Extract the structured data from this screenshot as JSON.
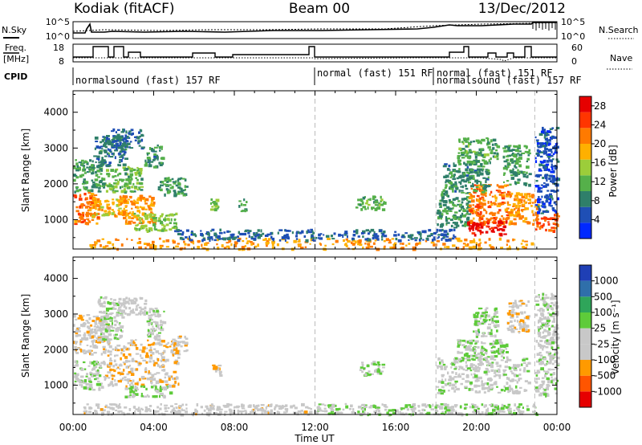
{
  "header": {
    "station": "Kodiak (fitACF)",
    "beam": "Beam 00",
    "date": "13/Dec/2012"
  },
  "left_labels": {
    "nsky": "N.Sky",
    "freq": "Freq.",
    "freq_unit": "[MHz]",
    "cpid": "CPID"
  },
  "right_labels": {
    "nsearch": "N.Search",
    "nave": "Nave"
  },
  "noise_panel": {
    "left_ticks": [
      "10^5",
      "10^0"
    ],
    "right_ticks": [
      "10^5",
      "10^0"
    ]
  },
  "freq_panel": {
    "left_ticks": [
      "18",
      "8"
    ],
    "right_ticks": [
      "60",
      "0"
    ]
  },
  "cpid_segments": [
    {
      "start": 0.0,
      "end": 12.0,
      "label": "normalsound (fast) 157 RF"
    },
    {
      "start": 12.0,
      "end": 18.0,
      "label": "normal (fast) 151 RF"
    },
    {
      "start": 18.0,
      "end": 21.2,
      "label": "normal (fast) 151 RF"
    },
    {
      "start": 18.0,
      "end": 24.0,
      "label": "normalsound (fast) 157 RF"
    }
  ],
  "colors": {
    "power": [
      "#0028ff",
      "#1f4fb5",
      "#2f7f6a",
      "#55b04a",
      "#9ccd3a",
      "#ffb000",
      "#ff7a00",
      "#ff3500",
      "#e60000"
    ],
    "velocity": [
      "#e60000",
      "#ff5500",
      "#ff9a00",
      "#c8c8c8",
      "#c8c8c8",
      "#5ecb3a",
      "#2fa55a",
      "#2f6faa",
      "#1f3fb5"
    ]
  },
  "chart_data": [
    {
      "type": "heatmap",
      "title": "Power",
      "xlabel": "",
      "ylabel": "Slant Range [km]",
      "x_ticks": [
        "00:00",
        "04:00",
        "08:00",
        "12:00",
        "16:00",
        "20:00",
        "00:00"
      ],
      "xlim": [
        0,
        24
      ],
      "y_ticks": [
        "1000",
        "2000",
        "3000",
        "4000"
      ],
      "ylim": [
        180,
        4600
      ],
      "colorbar": {
        "label": "Power [dB]",
        "ticks": [
          "4",
          "8",
          "12",
          "16",
          "20",
          "24",
          "28"
        ],
        "range": [
          0,
          30
        ]
      },
      "regions": [
        {
          "t0": 0.0,
          "t1": 1.2,
          "r0": 900,
          "r1": 1800,
          "v": 22
        },
        {
          "t0": 0.9,
          "t1": 2.6,
          "r0": 1100,
          "r1": 1600,
          "v": 18
        },
        {
          "t0": 2.2,
          "t1": 4.0,
          "r0": 900,
          "r1": 1700,
          "v": 20
        },
        {
          "t0": 3.0,
          "t1": 5.1,
          "r0": 700,
          "r1": 1200,
          "v": 14
        },
        {
          "t0": 0.0,
          "t1": 1.5,
          "r0": 1800,
          "r1": 2700,
          "v": 10
        },
        {
          "t0": 1.6,
          "t1": 3.4,
          "r0": 1800,
          "r1": 2500,
          "v": 12
        },
        {
          "t0": 1.0,
          "t1": 2.6,
          "r0": 2500,
          "r1": 3400,
          "v": 8
        },
        {
          "t0": 3.5,
          "t1": 4.4,
          "r0": 2500,
          "r1": 3100,
          "v": 9
        },
        {
          "t0": 1.8,
          "t1": 3.4,
          "r0": 3000,
          "r1": 3550,
          "v": 7
        },
        {
          "t0": 4.2,
          "t1": 5.6,
          "r0": 1700,
          "r1": 2200,
          "v": 10
        },
        {
          "t0": 6.8,
          "t1": 7.3,
          "r0": 1200,
          "r1": 1600,
          "v": 13
        },
        {
          "t0": 8.2,
          "t1": 8.6,
          "r0": 1200,
          "r1": 1600,
          "v": 10
        },
        {
          "t0": 14.0,
          "t1": 15.4,
          "r0": 1300,
          "r1": 1700,
          "v": 12
        },
        {
          "t0": 18.0,
          "t1": 19.6,
          "r0": 800,
          "r1": 1800,
          "v": 10
        },
        {
          "t0": 19.6,
          "t1": 21.6,
          "r0": 900,
          "r1": 2000,
          "v": 22
        },
        {
          "t0": 21.6,
          "t1": 23.0,
          "r0": 900,
          "r1": 1800,
          "v": 20
        },
        {
          "t0": 19.5,
          "t1": 21.5,
          "r0": 600,
          "r1": 1000,
          "v": 28
        },
        {
          "t0": 18.3,
          "t1": 20.6,
          "r0": 1800,
          "r1": 2600,
          "v": 9
        },
        {
          "t0": 19.0,
          "t1": 21.0,
          "r0": 2600,
          "r1": 3300,
          "v": 11
        },
        {
          "t0": 21.3,
          "t1": 22.6,
          "r0": 2000,
          "r1": 3100,
          "v": 10
        },
        {
          "t0": 22.9,
          "t1": 24.0,
          "r0": 700,
          "r1": 1200,
          "v": 24
        },
        {
          "t0": 22.9,
          "t1": 24.0,
          "r0": 1200,
          "r1": 3600,
          "v": 5
        },
        {
          "t0": 0.8,
          "t1": 23.0,
          "r0": 200,
          "r1": 500,
          "v": 20
        },
        {
          "t0": 5.0,
          "t1": 19.0,
          "r0": 450,
          "r1": 750,
          "v": 6
        }
      ]
    },
    {
      "type": "heatmap",
      "title": "Velocity",
      "xlabel": "Time UT",
      "ylabel": "Slant Range [km]",
      "x_ticks": [
        "00:00",
        "04:00",
        "08:00",
        "12:00",
        "16:00",
        "20:00",
        "00:00"
      ],
      "xlim": [
        0,
        24
      ],
      "y_ticks": [
        "1000",
        "2000",
        "3000",
        "4000"
      ],
      "ylim": [
        180,
        4600
      ],
      "colorbar": {
        "label": "Velocity [m s⁻¹]",
        "ticks": [
          "1000",
          "500",
          "100",
          "25",
          "-25",
          "-100",
          "-500",
          "-1000"
        ],
        "range": [
          -1200,
          1200
        ]
      },
      "regions": [
        {
          "t0": 0.0,
          "t1": 1.4,
          "r0": 900,
          "r1": 1700,
          "v": 0
        },
        {
          "t0": 1.4,
          "t1": 5.2,
          "r0": 1000,
          "r1": 2300,
          "v": -300
        },
        {
          "t0": 0.0,
          "t1": 1.8,
          "r0": 1900,
          "r1": 3000,
          "v": -300
        },
        {
          "t0": 1.2,
          "t1": 2.4,
          "r0": 2300,
          "r1": 3500,
          "v": 10
        },
        {
          "t0": 3.6,
          "t1": 4.5,
          "r0": 2300,
          "r1": 3200,
          "v": 5
        },
        {
          "t0": 2.2,
          "t1": 3.6,
          "r0": 3000,
          "r1": 3500,
          "v": -150
        },
        {
          "t0": 2.5,
          "t1": 4.8,
          "r0": 700,
          "r1": 1000,
          "v": 150
        },
        {
          "t0": 4.8,
          "t1": 5.6,
          "r0": 1900,
          "r1": 2400,
          "v": -300
        },
        {
          "t0": 6.8,
          "t1": 7.3,
          "r0": 1300,
          "r1": 1600,
          "v": -300
        },
        {
          "t0": 14.2,
          "t1": 15.4,
          "r0": 1300,
          "r1": 1700,
          "v": 150
        },
        {
          "t0": 18.0,
          "t1": 22.6,
          "r0": 800,
          "r1": 1800,
          "v": 0
        },
        {
          "t0": 19.0,
          "t1": 21.5,
          "r0": 1700,
          "r1": 2300,
          "v": 150
        },
        {
          "t0": 19.8,
          "t1": 21.0,
          "r0": 2400,
          "r1": 3200,
          "v": 200
        },
        {
          "t0": 21.5,
          "t1": 22.6,
          "r0": 2500,
          "r1": 3400,
          "v": -300
        },
        {
          "t0": 22.9,
          "t1": 24.0,
          "r0": 700,
          "r1": 3600,
          "v": 0
        },
        {
          "t0": 0.5,
          "t1": 12.0,
          "r0": 200,
          "r1": 500,
          "v": -200
        },
        {
          "t0": 12.0,
          "t1": 23.0,
          "r0": 200,
          "r1": 500,
          "v": 60
        }
      ]
    }
  ]
}
